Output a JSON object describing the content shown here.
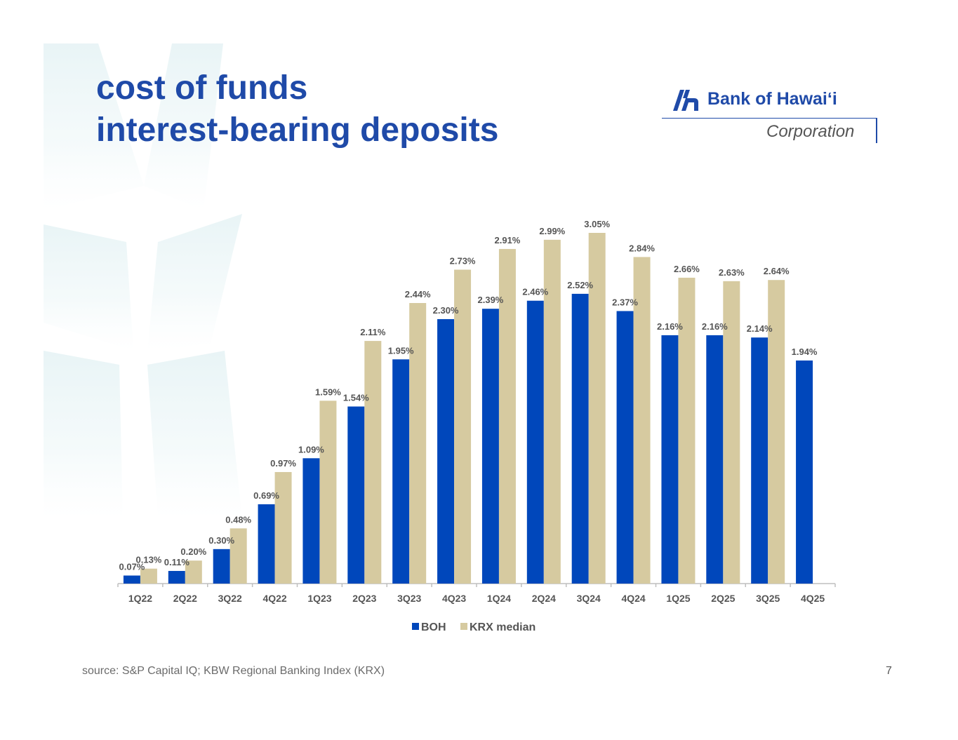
{
  "slide": {
    "title_line1": "cost of funds",
    "title_line2": "interest-bearing deposits",
    "source": "source: S&P Capital IQ; KBW Regional Banking Index (KRX)",
    "page_number": "7"
  },
  "logo": {
    "name": "Bank of Hawaiʻi",
    "sub": "Corporation"
  },
  "colors": {
    "title": "#1f4aa8",
    "boh": "#0047bb",
    "krx": "#d6caa0",
    "label": "#555555",
    "axis": "#bfbfbf"
  },
  "chart_data": {
    "type": "bar",
    "categories": [
      "1Q22",
      "2Q22",
      "3Q22",
      "4Q22",
      "1Q23",
      "2Q23",
      "3Q23",
      "4Q23",
      "1Q24",
      "2Q24",
      "3Q24",
      "4Q24",
      "1Q25",
      "2Q25",
      "3Q25",
      "4Q25"
    ],
    "series": [
      {
        "name": "BOH",
        "values": [
          0.07,
          0.11,
          0.3,
          0.69,
          1.09,
          1.54,
          1.95,
          2.3,
          2.39,
          2.46,
          2.52,
          2.37,
          2.16,
          2.16,
          2.14,
          1.94
        ],
        "labels": [
          "0.07%",
          "0.11%",
          "0.30%",
          "0.69%",
          "1.09%",
          "1.54%",
          "1.95%",
          "2.30%",
          "2.39%",
          "2.46%",
          "2.52%",
          "2.37%",
          "2.16%",
          "2.16%",
          "2.14%",
          "1.94%"
        ]
      },
      {
        "name": "KRX median",
        "values": [
          0.13,
          0.2,
          0.48,
          0.97,
          1.59,
          2.11,
          2.44,
          2.73,
          2.91,
          2.99,
          3.05,
          2.84,
          2.66,
          2.63,
          2.64,
          null
        ],
        "labels": [
          "0.13%",
          "0.20%",
          "0.48%",
          "0.97%",
          "1.59%",
          "2.11%",
          "2.44%",
          "2.73%",
          "2.91%",
          "2.99%",
          "3.05%",
          "2.84%",
          "2.66%",
          "2.63%",
          "2.64%",
          ""
        ]
      }
    ],
    "ylim": [
      0,
      3.05
    ],
    "grid": false,
    "legend": "bottom-center"
  }
}
